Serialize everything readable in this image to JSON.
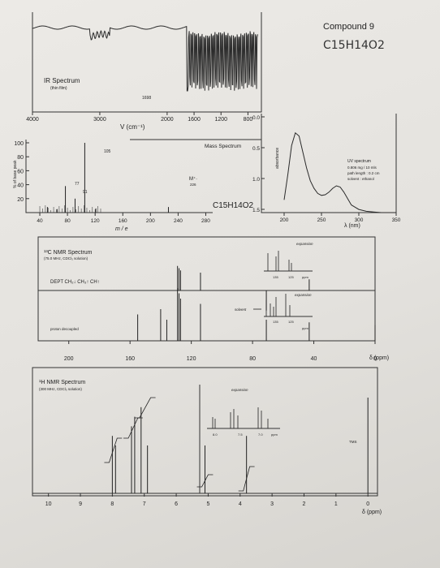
{
  "header": {
    "compound_title": "Compound 9",
    "handwritten_formula": "C15H14O2"
  },
  "ir": {
    "title": "IR Spectrum",
    "subtitle": "(thin film)",
    "peak_label": "1698",
    "x_ticks": [
      "4000",
      "3000",
      "2000",
      "1600",
      "1200",
      "800"
    ],
    "xlabel": "V (cm⁻¹)"
  },
  "ms": {
    "title": "Mass Spectrum",
    "ylabel": "% of base peak",
    "y_ticks": [
      "100",
      "80",
      "60",
      "40",
      "20"
    ],
    "x_ticks": [
      "40",
      "80",
      "120",
      "160",
      "200",
      "240",
      "280"
    ],
    "xlabel": "m / e",
    "peak_labels": [
      "105",
      "77",
      "91"
    ],
    "m_plus": "M⁺·",
    "m_plus_value": "226",
    "formula": "C15H14O2"
  },
  "uv": {
    "y_ticks": [
      "0.0",
      "0.5",
      "1.0",
      "1.5"
    ],
    "ylabel": "absorbance",
    "x_ticks": [
      "200",
      "250",
      "300",
      "350"
    ],
    "xlabel": "λ (nm)",
    "info": [
      "UV spectrum",
      "0.806 mg / 10 mls",
      "path length : 0.2 cm",
      "solvent : ethanol"
    ]
  },
  "c13": {
    "title": "¹³C NMR Spectrum",
    "subtitle": "(75.0 MHz, CDCl₃ solution)",
    "dept": "DEPT CH₂↓ CH₃↑ CH↑",
    "expansion": "expansion",
    "expansion_ticks": [
      "135",
      "125",
      "ppm"
    ],
    "solvent": "solvent",
    "proton_decoupled": "proton decoupled",
    "x_ticks": [
      "200",
      "160",
      "120",
      "80",
      "40",
      "0"
    ],
    "xlabel": "δ (ppm)"
  },
  "h1": {
    "title": "¹H NMR Spectrum",
    "subtitle": "(300 MHz, CDCl₃ solution)",
    "expansion": "expansion",
    "expansion_ticks": [
      "8.0",
      "7.5",
      "7.0",
      "ppm"
    ],
    "tms": "TMS",
    "x_ticks": [
      "10",
      "9",
      "8",
      "7",
      "6",
      "5",
      "4",
      "3",
      "2",
      "1",
      "0"
    ],
    "xlabel": "δ (ppm)"
  },
  "chart_data": [
    {
      "type": "line",
      "name": "IR",
      "xlabel": "V (cm⁻¹)",
      "xlim": [
        4000,
        600
      ],
      "annotations": [
        {
          "x": 1698,
          "label": "1698"
        }
      ]
    },
    {
      "type": "bar",
      "name": "Mass Spectrum",
      "xlabel": "m / e",
      "ylabel": "% of base peak",
      "ylim": [
        0,
        100
      ],
      "xlim": [
        20,
        290
      ],
      "x": [
        51,
        65,
        77,
        91,
        105,
        121,
        226
      ],
      "values": [
        8,
        5,
        38,
        20,
        100,
        6,
        8
      ]
    },
    {
      "type": "line",
      "name": "UV",
      "xlabel": "λ (nm)",
      "ylabel": "absorbance",
      "xlim": [
        200,
        350
      ],
      "ylim": [
        0,
        1.5
      ],
      "x": [
        200,
        205,
        210,
        215,
        220,
        225,
        230,
        235,
        240,
        245,
        250,
        255,
        260,
        265,
        270,
        275,
        280,
        285,
        290,
        300,
        310,
        320,
        330,
        340,
        350
      ],
      "y": [
        0.2,
        0.6,
        1.05,
        1.25,
        1.2,
        0.95,
        0.7,
        0.5,
        0.38,
        0.3,
        0.27,
        0.28,
        0.32,
        0.38,
        0.42,
        0.4,
        0.32,
        0.22,
        0.12,
        0.05,
        0.02,
        0.01,
        0.0,
        0.0,
        0.0
      ]
    },
    {
      "type": "bar",
      "name": "13C NMR proton decoupled",
      "xlabel": "δ (ppm)",
      "xlim": [
        220,
        0
      ],
      "x": [
        155,
        140,
        136,
        129,
        128,
        127,
        114,
        71,
        43,
        0
      ],
      "values": [
        0.5,
        0.6,
        0.4,
        1.0,
        0.9,
        0.8,
        0.7,
        0.4,
        0.35,
        0.3
      ]
    },
    {
      "type": "bar",
      "name": "1H NMR",
      "xlabel": "δ (ppm)",
      "xlim": [
        10.5,
        -0.3
      ],
      "x": [
        8.0,
        7.9,
        7.4,
        7.3,
        7.1,
        6.9,
        5.1,
        3.8,
        0.0
      ],
      "values": [
        0.6,
        0.5,
        0.7,
        0.8,
        0.9,
        0.5,
        0.5,
        0.6,
        1.0
      ]
    }
  ]
}
